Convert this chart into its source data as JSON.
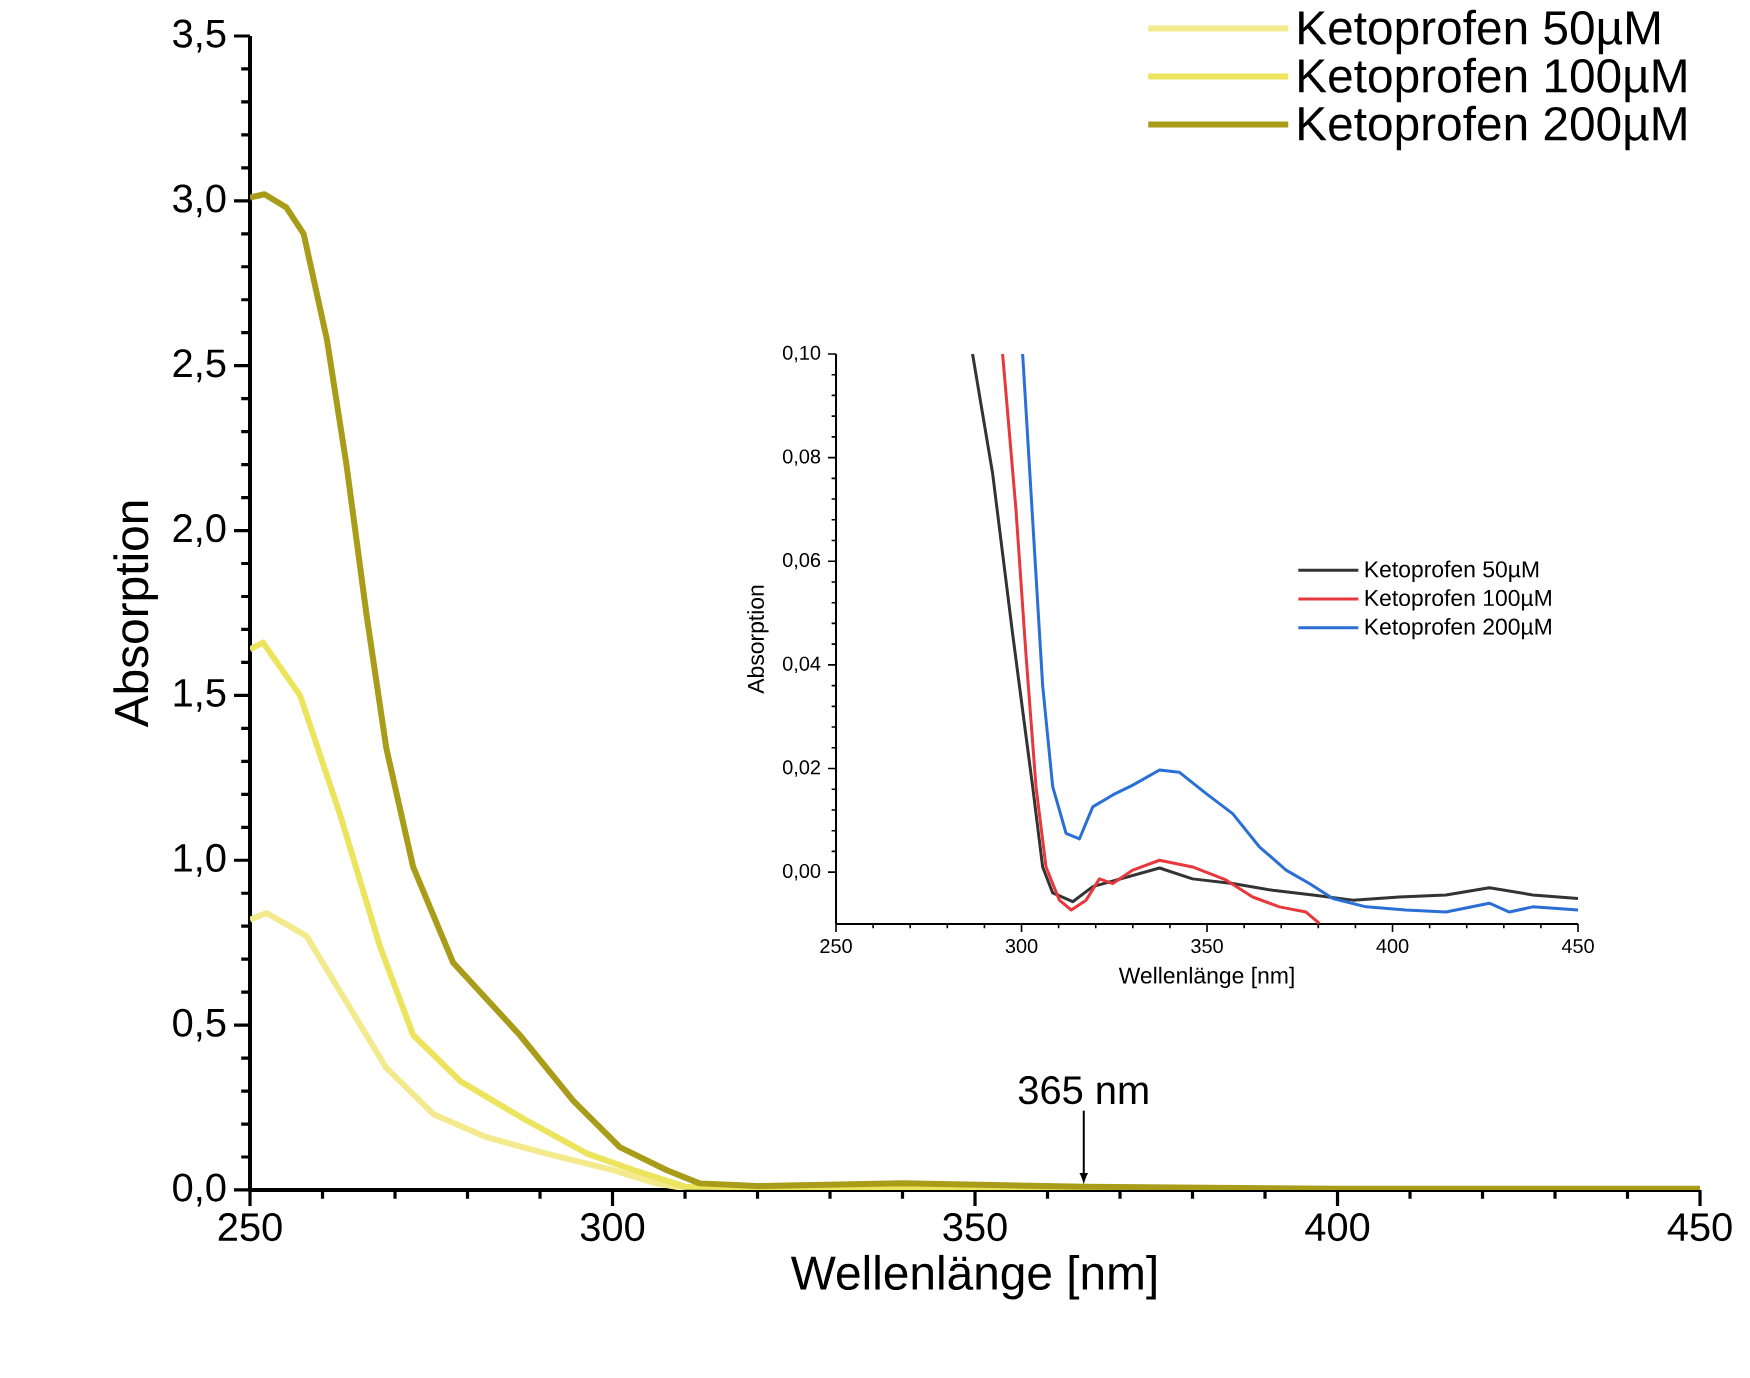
{
  "chart_data": [
    {
      "type": "line",
      "xlabel": "Wellenlänge [nm]",
      "ylabel": "Absorption",
      "legend": "top right",
      "xlim": [
        250,
        450
      ],
      "xticks": [
        250,
        300,
        350,
        400,
        450
      ],
      "ylim": [
        0,
        3.5
      ],
      "yticks": [
        {
          "value": 0,
          "label": "0,0"
        },
        {
          "value": 0.5,
          "label": "0,5"
        },
        {
          "value": 1,
          "label": "1,0"
        },
        {
          "value": 1.5,
          "label": "1,5"
        },
        {
          "value": 2,
          "label": "2,0"
        },
        {
          "value": 2.5,
          "label": "2,5"
        },
        {
          "value": 3,
          "label": "3,0"
        },
        {
          "value": 3.5,
          "label": "3,5"
        }
      ],
      "annotations": [
        {
          "text": "365 nm",
          "x": 365,
          "y": 0.01
        }
      ],
      "series": [
        {
          "name": "Ketoprofen 50µM",
          "color": "#f2ea8c",
          "x": [
            250,
            252.3,
            257.8,
            263.3,
            268.8,
            275.3,
            282.6,
            290.9,
            300.1,
            306,
            310
          ],
          "values": [
            0.82,
            0.84,
            0.77,
            0.57,
            0.37,
            0.23,
            0.16,
            0.11,
            0.06,
            0.02,
            0.005
          ]
        },
        {
          "name": "Ketoprofen 100µM",
          "color": "#ece45c",
          "x": [
            250,
            251.8,
            256.9,
            262.4,
            267.9,
            272.5,
            279,
            288.2,
            296.5,
            302.9,
            310,
            340,
            400,
            450
          ],
          "values": [
            1.64,
            1.66,
            1.5,
            1.14,
            0.74,
            0.47,
            0.33,
            0.21,
            0.11,
            0.06,
            0.01,
            0.005,
            0.002,
            0.002
          ]
        },
        {
          "name": "Ketoprofen 200µM",
          "color": "#a89c18",
          "x": [
            250,
            252,
            255,
            257.4,
            260.6,
            263.3,
            266.1,
            268.8,
            272.5,
            278,
            287.2,
            294.6,
            301,
            307.5,
            312,
            320,
            340,
            365,
            400,
            450
          ],
          "values": [
            3.01,
            3.02,
            2.98,
            2.9,
            2.58,
            2.2,
            1.74,
            1.34,
            0.98,
            0.69,
            0.47,
            0.27,
            0.13,
            0.06,
            0.02,
            0.012,
            0.02,
            0.01,
            0.004,
            0.004
          ]
        }
      ]
    },
    {
      "type": "line",
      "xlabel": "Wellenlänge [nm]",
      "ylabel": "Absorption",
      "legend": "right",
      "xlim": [
        250,
        450
      ],
      "xticks": [
        250,
        300,
        350,
        400,
        450
      ],
      "ylim": [
        -0.01,
        0.1
      ],
      "yticks": [
        {
          "value": 0,
          "label": "0,00"
        },
        {
          "value": 0.02,
          "label": "0,02"
        },
        {
          "value": 0.04,
          "label": "0,04"
        },
        {
          "value": 0.06,
          "label": "0,06"
        },
        {
          "value": 0.08,
          "label": "0,08"
        },
        {
          "value": 0.1,
          "label": "0,10"
        }
      ],
      "series": [
        {
          "name": "Ketoprofen 50µM",
          "color": "#333333",
          "x": [
            286.8,
            292.2,
            297.6,
            303,
            305.7,
            308.4,
            313.8,
            319.2,
            328.2,
            337.2,
            346.1,
            356.9,
            367.7,
            378.5,
            389.3,
            401.8,
            414.4,
            426.1,
            437.8,
            450
          ],
          "values": [
            0.1,
            0.077,
            0.046,
            0.0165,
            0.001,
            -0.004,
            -0.0057,
            -0.0028,
            -0.001,
            0.0008,
            -0.0013,
            -0.0022,
            -0.0035,
            -0.0044,
            -0.0054,
            -0.0048,
            -0.0044,
            -0.003,
            -0.0044,
            -0.0051
          ]
        },
        {
          "name": "Ketoprofen 100µM",
          "color": "#e8383d",
          "x": [
            294.9,
            298.5,
            301.2,
            303.9,
            306.6,
            310.2,
            313.4,
            317.4,
            321,
            324.6,
            330,
            337.2,
            346.1,
            355.1,
            362.3,
            369.5,
            376.7,
            380.3
          ],
          "values": [
            0.1,
            0.07,
            0.042,
            0.0165,
            0.001,
            -0.0054,
            -0.0073,
            -0.0054,
            -0.0013,
            -0.0022,
            0.0004,
            0.0023,
            0.001,
            -0.0015,
            -0.0048,
            -0.0067,
            -0.0077,
            -0.0099
          ]
        },
        {
          "name": "Ketoprofen 200µM",
          "color": "#2a6fd6",
          "x": [
            300.3,
            303,
            305.7,
            308.4,
            312,
            315.6,
            319.2,
            324.6,
            330,
            337.2,
            342.5,
            349.7,
            356.9,
            364.1,
            371.3,
            377.6,
            383.9,
            392.9,
            403.6,
            414.4,
            426.1,
            431.5,
            437.8,
            450
          ],
          "values": [
            0.1,
            0.068,
            0.036,
            0.0165,
            0.0075,
            0.0064,
            0.0126,
            0.0149,
            0.0168,
            0.0197,
            0.0193,
            0.0152,
            0.0113,
            0.0049,
            0.0004,
            -0.0022,
            -0.0051,
            -0.0067,
            -0.0073,
            -0.0077,
            -0.006,
            -0.0077,
            -0.0067,
            -0.0073
          ]
        }
      ]
    }
  ]
}
